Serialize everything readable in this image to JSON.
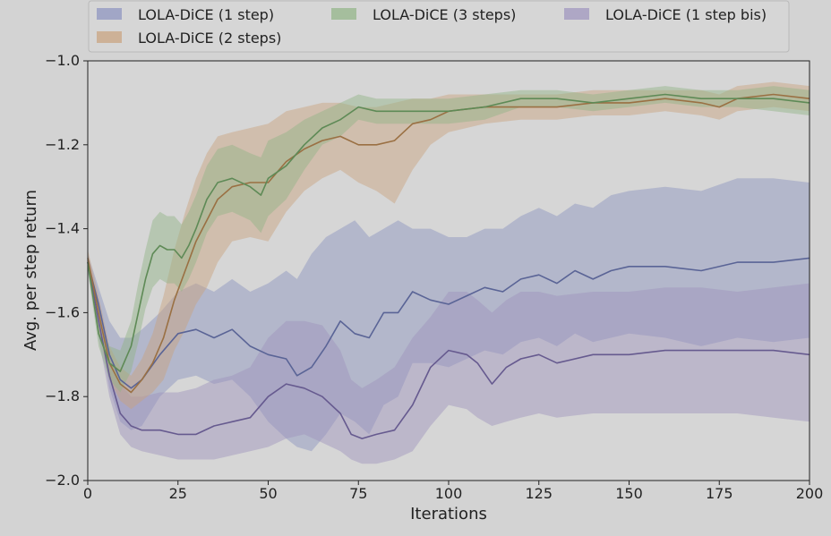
{
  "chart_data": {
    "type": "line",
    "xlabel": "Iterations",
    "ylabel": "Avg. per step return",
    "xlim": [
      0,
      200
    ],
    "ylim": [
      -2.0,
      -1.0
    ],
    "xticks": [
      0,
      25,
      50,
      75,
      100,
      125,
      150,
      175,
      200
    ],
    "yticks": [
      -2.0,
      -1.8,
      -1.6,
      -1.4,
      -1.2,
      -1.0
    ],
    "xtick_labels": [
      "0",
      "25",
      "50",
      "75",
      "100",
      "125",
      "150",
      "175",
      "200"
    ],
    "ytick_labels": [
      "−2.0",
      "−1.8",
      "−1.6",
      "−1.4",
      "−1.2",
      "−1.0"
    ],
    "grid": false,
    "legend_position": "top",
    "legend_columns": 3,
    "background_color": "#d3d3d3",
    "plot_background_color": "#d6d6d6",
    "series": [
      {
        "name": "LOLA-DiCE (1 step)",
        "color": "#5a6496",
        "band_color": "#8a92bf",
        "x": [
          0,
          3,
          6,
          9,
          12,
          15,
          20,
          25,
          30,
          35,
          40,
          45,
          50,
          55,
          58,
          62,
          66,
          70,
          74,
          78,
          82,
          86,
          90,
          95,
          100,
          105,
          110,
          115,
          120,
          125,
          130,
          135,
          140,
          145,
          150,
          160,
          170,
          180,
          190,
          200
        ],
        "y": [
          -1.48,
          -1.58,
          -1.7,
          -1.76,
          -1.78,
          -1.76,
          -1.7,
          -1.65,
          -1.64,
          -1.66,
          -1.64,
          -1.68,
          -1.7,
          -1.71,
          -1.75,
          -1.73,
          -1.68,
          -1.62,
          -1.65,
          -1.66,
          -1.6,
          -1.6,
          -1.55,
          -1.57,
          -1.58,
          -1.56,
          -1.54,
          -1.55,
          -1.52,
          -1.51,
          -1.53,
          -1.5,
          -1.52,
          -1.5,
          -1.49,
          -1.49,
          -1.5,
          -1.48,
          -1.48,
          -1.47
        ],
        "upper": [
          -1.46,
          -1.54,
          -1.62,
          -1.66,
          -1.66,
          -1.64,
          -1.6,
          -1.55,
          -1.53,
          -1.55,
          -1.52,
          -1.55,
          -1.53,
          -1.5,
          -1.52,
          -1.46,
          -1.42,
          -1.4,
          -1.38,
          -1.42,
          -1.4,
          -1.38,
          -1.4,
          -1.4,
          -1.42,
          -1.42,
          -1.4,
          -1.4,
          -1.37,
          -1.35,
          -1.37,
          -1.34,
          -1.35,
          -1.32,
          -1.31,
          -1.3,
          -1.31,
          -1.28,
          -1.28,
          -1.29
        ],
        "lower": [
          -1.5,
          -1.62,
          -1.78,
          -1.86,
          -1.88,
          -1.87,
          -1.8,
          -1.76,
          -1.75,
          -1.77,
          -1.76,
          -1.8,
          -1.86,
          -1.9,
          -1.92,
          -1.93,
          -1.89,
          -1.84,
          -1.86,
          -1.89,
          -1.82,
          -1.8,
          -1.72,
          -1.72,
          -1.73,
          -1.71,
          -1.69,
          -1.7,
          -1.67,
          -1.66,
          -1.68,
          -1.65,
          -1.67,
          -1.66,
          -1.65,
          -1.66,
          -1.68,
          -1.66,
          -1.67,
          -1.66
        ]
      },
      {
        "name": "LOLA-DiCE (2 steps)",
        "color": "#9a7043",
        "band_color": "#c9a17c",
        "x": [
          0,
          3,
          6,
          9,
          12,
          15,
          18,
          21,
          24,
          27,
          30,
          33,
          36,
          40,
          45,
          50,
          55,
          60,
          65,
          70,
          75,
          80,
          85,
          90,
          95,
          100,
          110,
          120,
          130,
          140,
          150,
          160,
          170,
          175,
          180,
          190,
          200
        ],
        "y": [
          -1.47,
          -1.6,
          -1.72,
          -1.77,
          -1.79,
          -1.76,
          -1.72,
          -1.66,
          -1.57,
          -1.5,
          -1.43,
          -1.38,
          -1.33,
          -1.3,
          -1.29,
          -1.29,
          -1.24,
          -1.21,
          -1.19,
          -1.18,
          -1.2,
          -1.2,
          -1.19,
          -1.15,
          -1.14,
          -1.12,
          -1.11,
          -1.11,
          -1.11,
          -1.1,
          -1.1,
          -1.09,
          -1.1,
          -1.11,
          -1.09,
          -1.08,
          -1.09
        ],
        "upper": [
          -1.45,
          -1.56,
          -1.68,
          -1.73,
          -1.75,
          -1.71,
          -1.65,
          -1.56,
          -1.45,
          -1.36,
          -1.28,
          -1.22,
          -1.18,
          -1.17,
          -1.16,
          -1.15,
          -1.12,
          -1.11,
          -1.1,
          -1.1,
          -1.11,
          -1.11,
          -1.1,
          -1.09,
          -1.09,
          -1.08,
          -1.08,
          -1.08,
          -1.08,
          -1.07,
          -1.07,
          -1.07,
          -1.07,
          -1.08,
          -1.06,
          -1.05,
          -1.06
        ],
        "lower": [
          -1.49,
          -1.64,
          -1.76,
          -1.81,
          -1.83,
          -1.81,
          -1.79,
          -1.76,
          -1.69,
          -1.64,
          -1.58,
          -1.54,
          -1.48,
          -1.43,
          -1.42,
          -1.43,
          -1.36,
          -1.31,
          -1.28,
          -1.26,
          -1.29,
          -1.31,
          -1.34,
          -1.26,
          -1.2,
          -1.17,
          -1.15,
          -1.14,
          -1.14,
          -1.13,
          -1.13,
          -1.12,
          -1.13,
          -1.14,
          -1.12,
          -1.11,
          -1.12
        ]
      },
      {
        "name": "LOLA-DiCE (3 steps)",
        "color": "#5e8a56",
        "band_color": "#90b385",
        "x": [
          0,
          3,
          6,
          9,
          12,
          14,
          16,
          18,
          20,
          22,
          24,
          26,
          28,
          30,
          33,
          36,
          40,
          45,
          48,
          50,
          55,
          60,
          65,
          70,
          75,
          80,
          85,
          90,
          95,
          100,
          110,
          120,
          130,
          140,
          150,
          160,
          170,
          180,
          190,
          200
        ],
        "y": [
          -1.48,
          -1.65,
          -1.72,
          -1.74,
          -1.68,
          -1.6,
          -1.52,
          -1.46,
          -1.44,
          -1.45,
          -1.45,
          -1.47,
          -1.44,
          -1.4,
          -1.33,
          -1.29,
          -1.28,
          -1.3,
          -1.32,
          -1.28,
          -1.25,
          -1.2,
          -1.16,
          -1.14,
          -1.11,
          -1.12,
          -1.12,
          -1.12,
          -1.12,
          -1.12,
          -1.11,
          -1.09,
          -1.09,
          -1.1,
          -1.09,
          -1.08,
          -1.09,
          -1.09,
          -1.09,
          -1.1
        ],
        "upper": [
          -1.46,
          -1.62,
          -1.68,
          -1.69,
          -1.62,
          -1.53,
          -1.45,
          -1.38,
          -1.36,
          -1.37,
          -1.37,
          -1.39,
          -1.36,
          -1.32,
          -1.25,
          -1.21,
          -1.2,
          -1.22,
          -1.23,
          -1.19,
          -1.17,
          -1.14,
          -1.12,
          -1.1,
          -1.08,
          -1.09,
          -1.09,
          -1.09,
          -1.09,
          -1.09,
          -1.08,
          -1.07,
          -1.07,
          -1.08,
          -1.07,
          -1.06,
          -1.07,
          -1.07,
          -1.06,
          -1.07
        ],
        "lower": [
          -1.5,
          -1.68,
          -1.76,
          -1.79,
          -1.74,
          -1.67,
          -1.59,
          -1.54,
          -1.52,
          -1.53,
          -1.53,
          -1.55,
          -1.52,
          -1.48,
          -1.41,
          -1.37,
          -1.36,
          -1.38,
          -1.41,
          -1.37,
          -1.33,
          -1.26,
          -1.2,
          -1.18,
          -1.14,
          -1.15,
          -1.15,
          -1.15,
          -1.15,
          -1.15,
          -1.14,
          -1.11,
          -1.11,
          -1.12,
          -1.11,
          -1.1,
          -1.11,
          -1.11,
          -1.12,
          -1.13
        ]
      },
      {
        "name": "LOLA-DiCE (1 step bis)",
        "color": "#665a8f",
        "band_color": "#9d93bd",
        "x": [
          0,
          3,
          6,
          9,
          12,
          15,
          20,
          25,
          30,
          35,
          40,
          45,
          50,
          55,
          60,
          65,
          70,
          73,
          76,
          80,
          85,
          90,
          95,
          100,
          105,
          108,
          112,
          116,
          120,
          125,
          130,
          140,
          150,
          160,
          170,
          180,
          190,
          200
        ],
        "y": [
          -1.48,
          -1.62,
          -1.75,
          -1.84,
          -1.87,
          -1.88,
          -1.88,
          -1.89,
          -1.89,
          -1.87,
          -1.86,
          -1.85,
          -1.8,
          -1.77,
          -1.78,
          -1.8,
          -1.84,
          -1.89,
          -1.9,
          -1.89,
          -1.88,
          -1.82,
          -1.73,
          -1.69,
          -1.7,
          -1.72,
          -1.77,
          -1.73,
          -1.71,
          -1.7,
          -1.72,
          -1.7,
          -1.7,
          -1.69,
          -1.69,
          -1.69,
          -1.69,
          -1.7
        ],
        "upper": [
          -1.46,
          -1.58,
          -1.7,
          -1.77,
          -1.8,
          -1.8,
          -1.79,
          -1.79,
          -1.78,
          -1.76,
          -1.75,
          -1.73,
          -1.66,
          -1.62,
          -1.62,
          -1.63,
          -1.69,
          -1.76,
          -1.78,
          -1.76,
          -1.73,
          -1.66,
          -1.61,
          -1.55,
          -1.55,
          -1.57,
          -1.6,
          -1.57,
          -1.55,
          -1.55,
          -1.56,
          -1.55,
          -1.55,
          -1.54,
          -1.54,
          -1.55,
          -1.54,
          -1.53
        ],
        "lower": [
          -1.5,
          -1.66,
          -1.8,
          -1.89,
          -1.92,
          -1.93,
          -1.94,
          -1.95,
          -1.95,
          -1.95,
          -1.94,
          -1.93,
          -1.92,
          -1.9,
          -1.89,
          -1.91,
          -1.93,
          -1.95,
          -1.96,
          -1.96,
          -1.95,
          -1.93,
          -1.87,
          -1.82,
          -1.83,
          -1.85,
          -1.87,
          -1.86,
          -1.85,
          -1.84,
          -1.85,
          -1.84,
          -1.84,
          -1.84,
          -1.84,
          -1.84,
          -1.85,
          -1.86
        ]
      }
    ],
    "legend_entries": [
      "LOLA-DiCE (1 step)",
      "LOLA-DiCE (3 steps)",
      "LOLA-DiCE (1 step bis)",
      "LOLA-DiCE (2 steps)"
    ]
  }
}
